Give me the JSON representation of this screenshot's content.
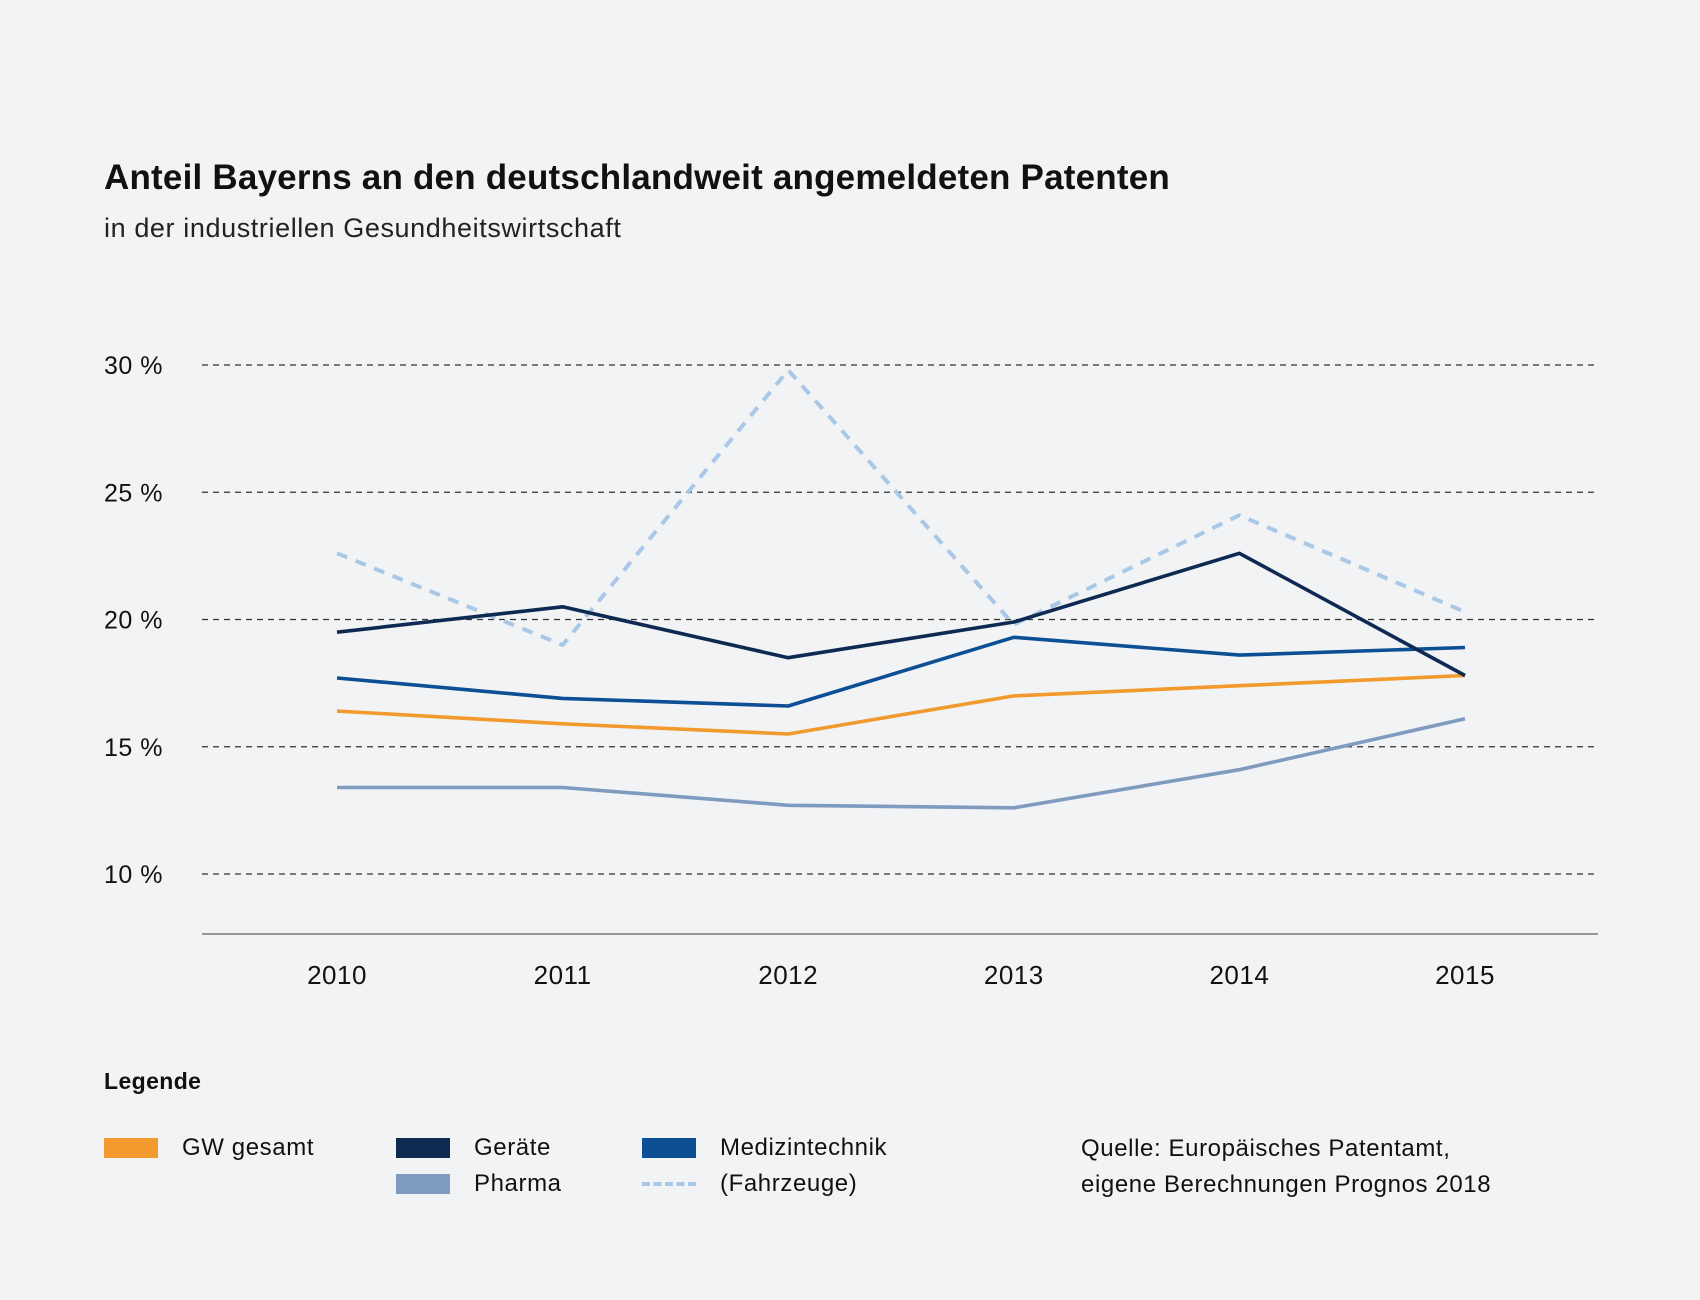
{
  "chart_data": {
    "type": "line",
    "title": "Anteil Bayerns an den deutschlandweit angemeldeten Patenten",
    "subtitle": "in der industriellen Gesundheitswirtschaft",
    "x": [
      "2010",
      "2011",
      "2012",
      "2013",
      "2014",
      "2015"
    ],
    "ylim": [
      7.7,
      30
    ],
    "yticks": [
      {
        "value": 30,
        "label": "30 %"
      },
      {
        "value": 25,
        "label": "25 %"
      },
      {
        "value": 20,
        "label": "20 %"
      },
      {
        "value": 15,
        "label": "15 %"
      },
      {
        "value": 10,
        "label": "10 %"
      }
    ],
    "grid": true,
    "legend_position": "bottom",
    "series": [
      {
        "name": "(Fahrzeuge)",
        "color": "#a9c7e6",
        "dashed": true,
        "values": [
          22.6,
          19.0,
          29.8,
          19.8,
          24.1,
          20.3
        ]
      },
      {
        "name": "Pharma",
        "color": "#7f9bbf",
        "dashed": false,
        "values": [
          13.4,
          13.4,
          12.7,
          12.6,
          14.1,
          16.1
        ]
      },
      {
        "name": "GW gesamt",
        "color": "#f29a2e",
        "dashed": false,
        "values": [
          16.4,
          15.9,
          15.5,
          17.0,
          17.4,
          17.8
        ]
      },
      {
        "name": "Medizintechnik",
        "color": "#0d4f94",
        "dashed": false,
        "values": [
          17.7,
          16.9,
          16.6,
          19.3,
          18.6,
          18.9
        ]
      },
      {
        "name": "Geräte",
        "color": "#0e2a52",
        "dashed": false,
        "values": [
          19.5,
          20.5,
          18.5,
          19.9,
          22.6,
          17.8
        ]
      }
    ]
  },
  "legend": {
    "title": "Legende",
    "items": [
      {
        "label": "GW gesamt",
        "color": "#f29a2e",
        "dashed": false
      },
      {
        "label": "Geräte",
        "color": "#0e2a52",
        "dashed": false
      },
      {
        "label": "Pharma",
        "color": "#7f9bbf",
        "dashed": false
      },
      {
        "label": "Medizintechnik",
        "color": "#0d4f94",
        "dashed": false
      },
      {
        "label": "(Fahrzeuge)",
        "color": "#a9c7e6",
        "dashed": true
      }
    ]
  },
  "source": {
    "line1": "Quelle: Europäisches Patentamt,",
    "line2": "eigene Berechnungen Prognos 2018"
  }
}
